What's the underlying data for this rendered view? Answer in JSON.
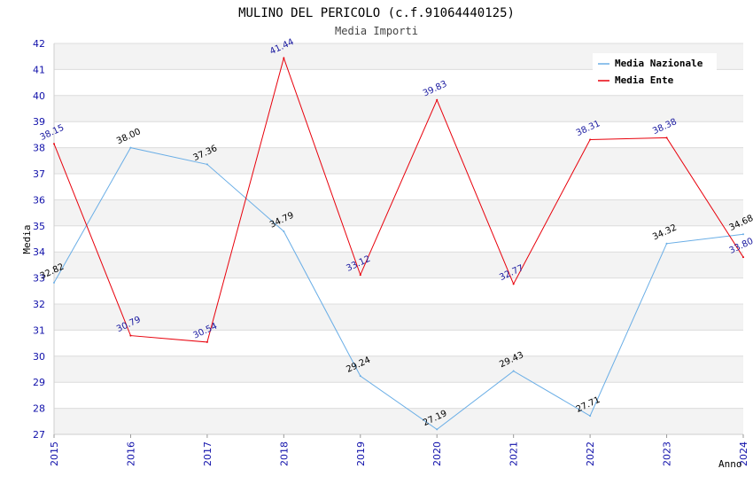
{
  "chart_data": {
    "type": "line",
    "title": "MULINO DEL PERICOLO (c.f.91064440125)",
    "subtitle": "Media Importi",
    "xlabel": "Anno",
    "ylabel": "Media",
    "categories": [
      "2015",
      "2016",
      "2017",
      "2018",
      "2019",
      "2020",
      "2021",
      "2022",
      "2023",
      "2024"
    ],
    "ylim": [
      27,
      42
    ],
    "yticks": [
      27,
      28,
      29,
      30,
      31,
      32,
      33,
      34,
      35,
      36,
      37,
      38,
      39,
      40,
      41,
      42
    ],
    "grid": true,
    "legend_position": "top-right",
    "series": [
      {
        "name": "Media Nazionale",
        "color": "#6aaee6",
        "label_color": "#000000",
        "values": [
          32.82,
          38.0,
          37.36,
          34.79,
          29.24,
          27.19,
          29.43,
          27.71,
          34.32,
          34.68
        ],
        "labels": [
          "32.82",
          "38.00",
          "37.36",
          "34.79",
          "29.24",
          "27.19",
          "29.43",
          "27.71",
          "34.32",
          "34.68"
        ]
      },
      {
        "name": "Media Ente",
        "color": "#e8000b",
        "label_color": "#1a1aa0",
        "values": [
          38.15,
          30.79,
          30.54,
          41.44,
          33.12,
          39.83,
          32.77,
          38.31,
          38.38,
          33.8
        ],
        "labels": [
          "38.15",
          "30.79",
          "30.54",
          "41.44",
          "33.12",
          "39.83",
          "32.77",
          "38.31",
          "38.38",
          "33.80"
        ]
      }
    ]
  }
}
